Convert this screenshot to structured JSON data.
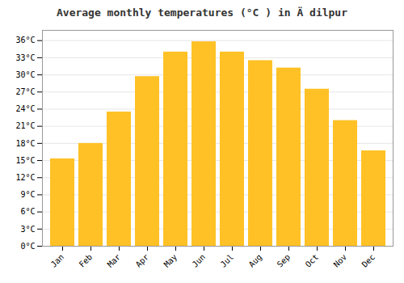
{
  "chart_data": {
    "type": "bar",
    "title": "Average monthly temperatures (°C ) in Ä dilpur",
    "categories": [
      "Jan",
      "Feb",
      "Mar",
      "Apr",
      "May",
      "Jun",
      "Jul",
      "Aug",
      "Sep",
      "Oct",
      "Nov",
      "Dec"
    ],
    "values": [
      15.3,
      18.0,
      23.5,
      29.7,
      34.0,
      35.8,
      34.0,
      32.5,
      31.2,
      27.5,
      22.0,
      16.7
    ],
    "color": "#FFC125",
    "ylim": [
      0,
      37.8
    ],
    "yticks": [
      {
        "value": 0,
        "label": "0°C"
      },
      {
        "value": 3,
        "label": "3°C"
      },
      {
        "value": 6,
        "label": "6°C"
      },
      {
        "value": 9,
        "label": "9°C"
      },
      {
        "value": 12,
        "label": "12°C"
      },
      {
        "value": 15,
        "label": "15°C"
      },
      {
        "value": 18,
        "label": "18°C"
      },
      {
        "value": 21,
        "label": "21°C"
      },
      {
        "value": 24,
        "label": "24°C"
      },
      {
        "value": 27,
        "label": "27°C"
      },
      {
        "value": 30,
        "label": "30°C"
      },
      {
        "value": 33,
        "label": "33°C"
      },
      {
        "value": 36,
        "label": "36°C"
      }
    ],
    "grid": true
  }
}
